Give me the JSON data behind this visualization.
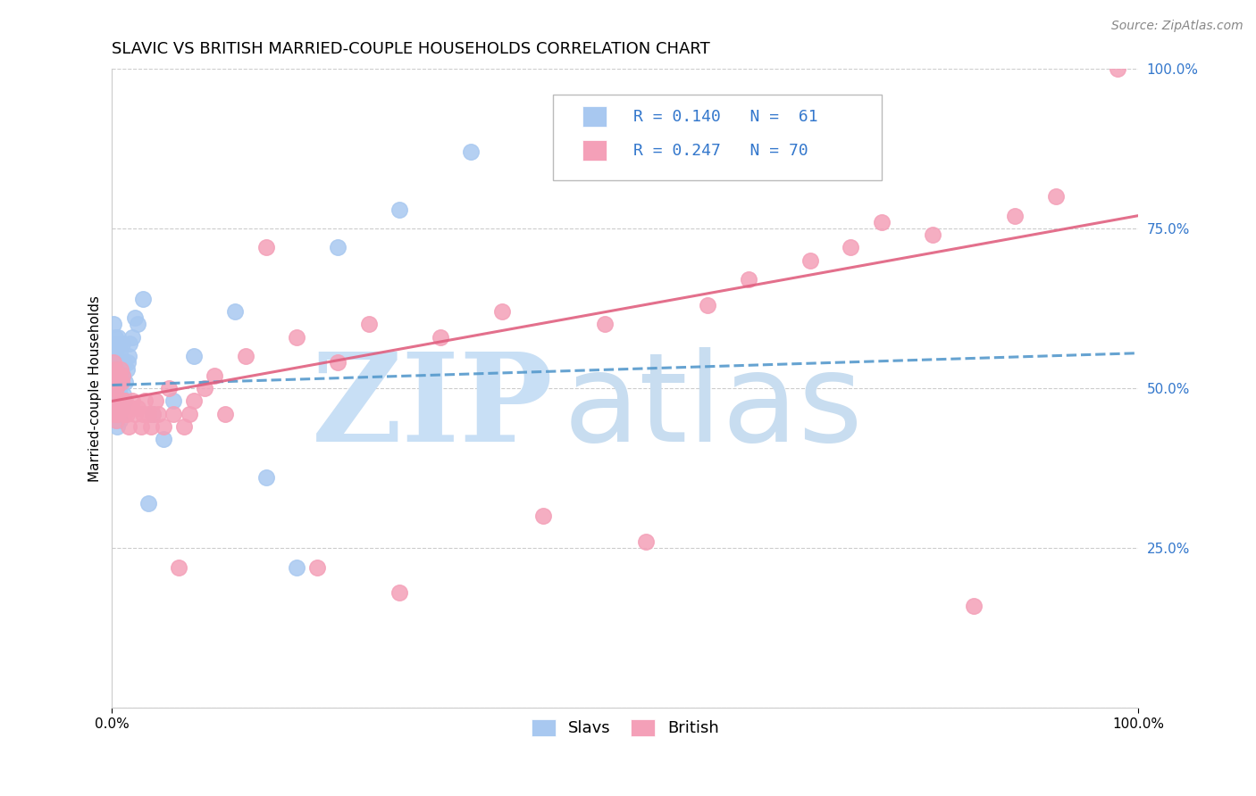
{
  "title": "SLAVIC VS BRITISH MARRIED-COUPLE HOUSEHOLDS CORRELATION CHART",
  "source": "Source: ZipAtlas.com",
  "ylabel": "Married-couple Households",
  "slavs_color": "#a8c8f0",
  "british_color": "#f4a0b8",
  "slavs_line_color": "#5599cc",
  "british_line_color": "#e06080",
  "accent_color": "#3377cc",
  "grid_color": "#cccccc",
  "watermark_zip_color": "#c8dff5",
  "watermark_atlas_color": "#c8ddf0",
  "legend_box_edge": "#bbbbbb",
  "ytick_color": "#3377cc",
  "slavs_x": [
    0.001,
    0.001,
    0.001,
    0.001,
    0.001,
    0.002,
    0.002,
    0.002,
    0.002,
    0.003,
    0.003,
    0.003,
    0.003,
    0.003,
    0.004,
    0.004,
    0.004,
    0.004,
    0.005,
    0.005,
    0.005,
    0.006,
    0.006,
    0.006,
    0.006,
    0.007,
    0.007,
    0.007,
    0.007,
    0.008,
    0.008,
    0.008,
    0.009,
    0.009,
    0.01,
    0.01,
    0.01,
    0.011,
    0.011,
    0.012,
    0.012,
    0.013,
    0.014,
    0.015,
    0.016,
    0.017,
    0.02,
    0.022,
    0.025,
    0.03,
    0.035,
    0.04,
    0.05,
    0.06,
    0.08,
    0.12,
    0.15,
    0.18,
    0.22,
    0.28,
    0.35
  ],
  "slavs_y": [
    0.49,
    0.51,
    0.53,
    0.56,
    0.6,
    0.47,
    0.5,
    0.53,
    0.57,
    0.46,
    0.49,
    0.52,
    0.55,
    0.58,
    0.45,
    0.48,
    0.52,
    0.56,
    0.44,
    0.48,
    0.53,
    0.46,
    0.5,
    0.54,
    0.58,
    0.45,
    0.49,
    0.53,
    0.57,
    0.47,
    0.51,
    0.55,
    0.48,
    0.53,
    0.47,
    0.52,
    0.57,
    0.49,
    0.54,
    0.48,
    0.54,
    0.51,
    0.53,
    0.54,
    0.55,
    0.57,
    0.58,
    0.61,
    0.6,
    0.64,
    0.32,
    0.46,
    0.42,
    0.48,
    0.55,
    0.62,
    0.36,
    0.22,
    0.72,
    0.78,
    0.87
  ],
  "british_x": [
    0.001,
    0.001,
    0.002,
    0.002,
    0.003,
    0.003,
    0.004,
    0.004,
    0.005,
    0.005,
    0.006,
    0.006,
    0.007,
    0.007,
    0.008,
    0.008,
    0.009,
    0.009,
    0.01,
    0.01,
    0.011,
    0.012,
    0.013,
    0.014,
    0.015,
    0.016,
    0.018,
    0.02,
    0.022,
    0.025,
    0.028,
    0.03,
    0.032,
    0.035,
    0.038,
    0.04,
    0.042,
    0.045,
    0.05,
    0.055,
    0.06,
    0.065,
    0.07,
    0.075,
    0.08,
    0.09,
    0.1,
    0.11,
    0.13,
    0.15,
    0.18,
    0.2,
    0.22,
    0.25,
    0.28,
    0.32,
    0.38,
    0.42,
    0.48,
    0.52,
    0.58,
    0.62,
    0.68,
    0.72,
    0.75,
    0.8,
    0.84,
    0.88,
    0.92,
    0.98
  ],
  "british_y": [
    0.5,
    0.54,
    0.46,
    0.52,
    0.48,
    0.53,
    0.45,
    0.5,
    0.47,
    0.52,
    0.46,
    0.51,
    0.47,
    0.52,
    0.48,
    0.53,
    0.47,
    0.51,
    0.47,
    0.52,
    0.48,
    0.46,
    0.48,
    0.46,
    0.47,
    0.44,
    0.47,
    0.48,
    0.46,
    0.47,
    0.44,
    0.46,
    0.48,
    0.46,
    0.44,
    0.46,
    0.48,
    0.46,
    0.44,
    0.5,
    0.46,
    0.22,
    0.44,
    0.46,
    0.48,
    0.5,
    0.52,
    0.46,
    0.55,
    0.72,
    0.58,
    0.22,
    0.54,
    0.6,
    0.18,
    0.58,
    0.62,
    0.3,
    0.6,
    0.26,
    0.63,
    0.67,
    0.7,
    0.72,
    0.76,
    0.74,
    0.16,
    0.77,
    0.8,
    1.0
  ],
  "slavs_trend": [
    0.505,
    0.555
  ],
  "british_trend": [
    0.48,
    0.77
  ],
  "xtick_positions": [
    0,
    1
  ],
  "xtick_labels": [
    "0.0%",
    "100.0%"
  ],
  "ytick_positions": [
    0.25,
    0.5,
    0.75,
    1.0
  ],
  "ytick_labels": [
    "25.0%",
    "50.0%",
    "75.0%",
    "100.0%"
  ]
}
